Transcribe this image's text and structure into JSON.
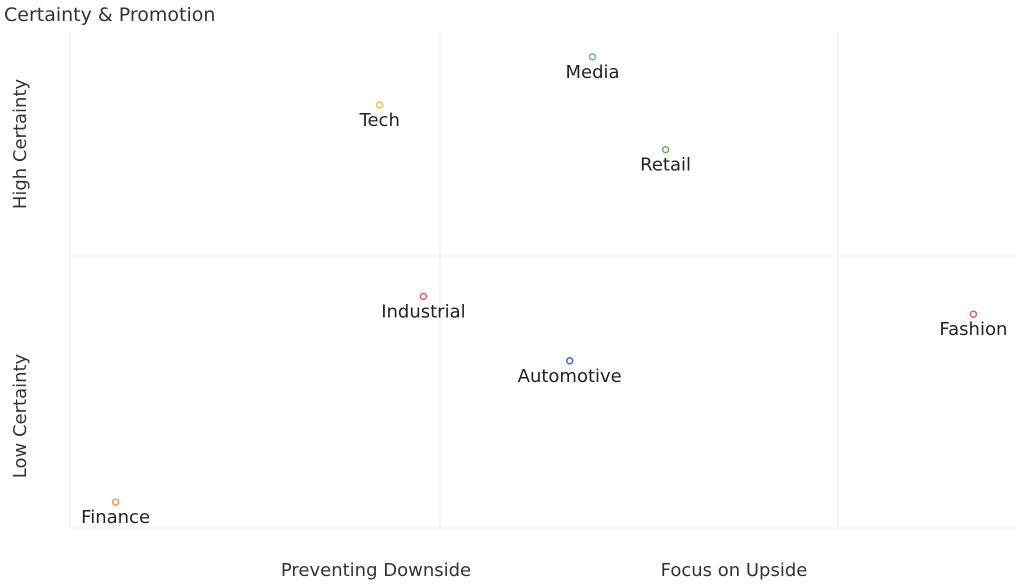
{
  "chart_data": {
    "type": "scatter",
    "title": "Certainty & Promotion",
    "x_axis_labels": [
      "Preventing Downside",
      "Focus on Upside"
    ],
    "y_axis_labels": [
      "High Certainty",
      "Low Certainty"
    ],
    "xlim": [
      0,
      100
    ],
    "ylim": [
      0,
      100
    ],
    "grid": true,
    "points": [
      {
        "name": "Media",
        "x": 55.0,
        "y": 95.0,
        "color": "#76a9c4"
      },
      {
        "name": "Tech",
        "x": 32.6,
        "y": 85.3,
        "color": "#e8c547"
      },
      {
        "name": "Retail",
        "x": 62.7,
        "y": 76.3,
        "color": "#6aae5a"
      },
      {
        "name": "Industrial",
        "x": 37.2,
        "y": 46.7,
        "color": "#d9606b"
      },
      {
        "name": "Fashion",
        "x": 95.1,
        "y": 43.1,
        "color": "#c9648e"
      },
      {
        "name": "Automotive",
        "x": 52.6,
        "y": 33.7,
        "color": "#4a6fb5"
      },
      {
        "name": "Finance",
        "x": 4.8,
        "y": 5.2,
        "color": "#ec9a55"
      }
    ]
  }
}
